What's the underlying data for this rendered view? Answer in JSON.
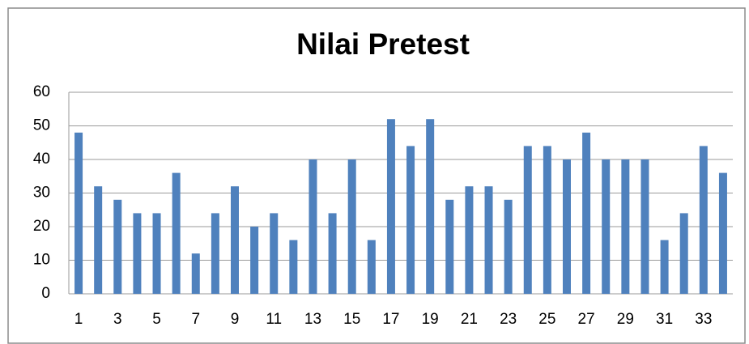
{
  "chart_data": {
    "type": "bar",
    "title": "Nilai Pretest",
    "categories": [
      "1",
      null,
      "3",
      null,
      "5",
      null,
      "7",
      null,
      "9",
      null,
      "11",
      null,
      "13",
      null,
      "15",
      null,
      "17",
      null,
      "19",
      null,
      "21",
      null,
      "23",
      null,
      "25",
      null,
      "27",
      null,
      "29",
      null,
      "31",
      null,
      "33",
      null
    ],
    "values": [
      48,
      32,
      28,
      24,
      24,
      36,
      12,
      24,
      32,
      20,
      24,
      16,
      40,
      24,
      40,
      16,
      52,
      44,
      52,
      28,
      32,
      32,
      28,
      44,
      44,
      40,
      48,
      40,
      40,
      40,
      16,
      24,
      44,
      36
    ],
    "color": "#4f81bd",
    "ylim": [
      0,
      60
    ],
    "yticks": [
      0,
      10,
      20,
      30,
      40,
      50,
      60
    ],
    "grid": true
  }
}
